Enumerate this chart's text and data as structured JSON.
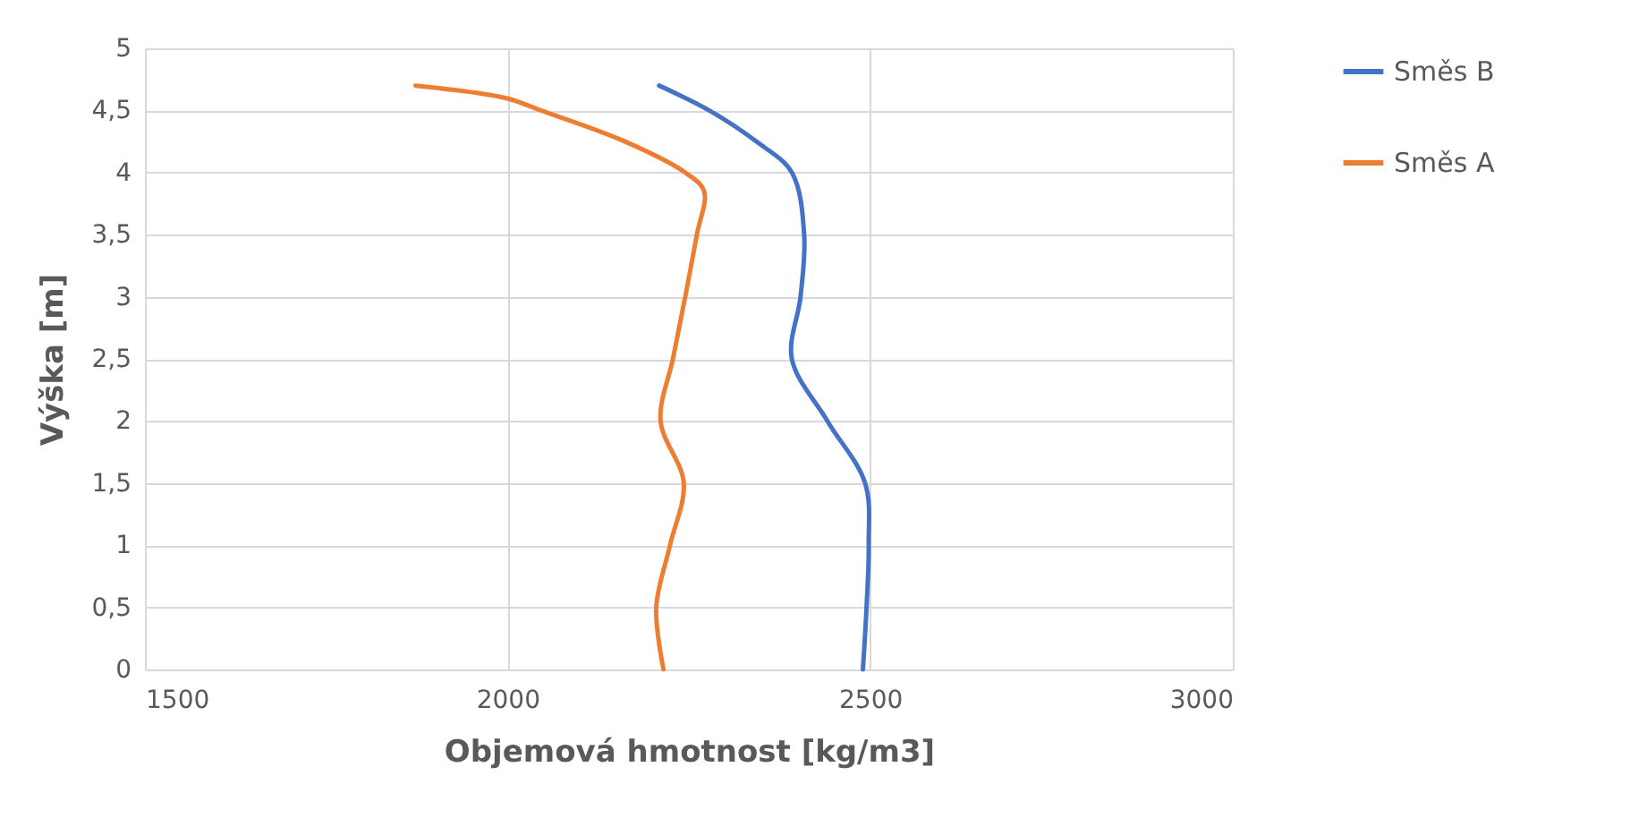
{
  "chart_data": {
    "type": "line",
    "xlabel": "Objemová hmotnost [kg/m3]",
    "ylabel": "Výška [m]",
    "xlim": [
      1500,
      3000
    ],
    "xticks": [
      1500,
      2000,
      2500,
      3000
    ],
    "ylim": [
      0,
      5
    ],
    "yticks": [
      0,
      {
        "value": 0.5,
        "label": "0,5"
      },
      1,
      {
        "value": 1.5,
        "label": "1,5"
      },
      2,
      {
        "value": 2.5,
        "label": "2,5"
      },
      3,
      {
        "value": 3.5,
        "label": "3,5"
      },
      4,
      {
        "value": 4.5,
        "label": "4,5"
      },
      5
    ],
    "grid": true,
    "legend": "right",
    "line_style": "solid",
    "marker": "none",
    "series": [
      {
        "name": "Směs B",
        "color": "#4472c4",
        "x": [
          2490,
          2495,
          2498,
          2493,
          2441,
          2392,
          2404,
          2409,
          2392,
          2343,
          2278,
          2209
        ],
        "values": [
          0,
          0.5,
          1,
          1.5,
          2,
          2.5,
          3,
          3.5,
          4,
          4.25,
          4.5,
          4.7
        ]
      },
      {
        "name": "Směs A",
        "color": "#ed7d31",
        "x": [
          2215,
          2205,
          2224,
          2243,
          2211,
          2228,
          2245,
          2261,
          2271,
          2245,
          2162,
          2046,
          1997,
          1873
        ],
        "values": [
          0,
          0.5,
          1,
          1.5,
          2,
          2.5,
          3,
          3.5,
          3.85,
          4,
          4.25,
          4.5,
          4.6,
          4.7
        ]
      }
    ]
  }
}
